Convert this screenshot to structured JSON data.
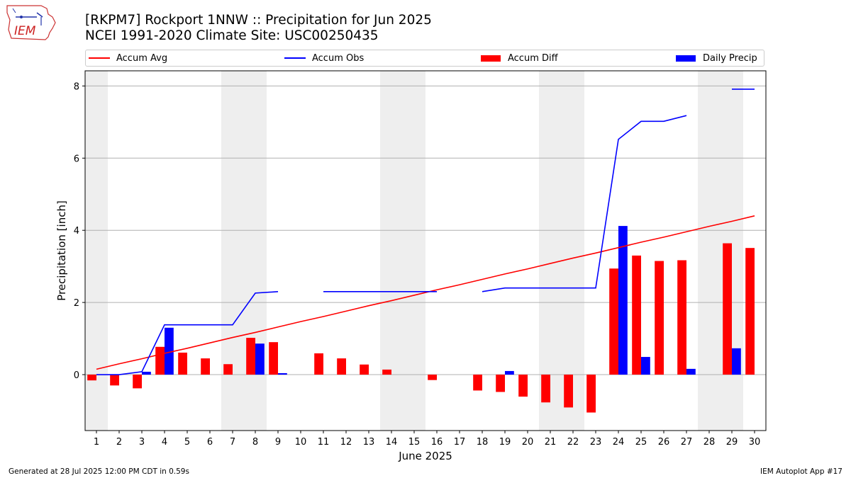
{
  "header": {
    "title_line1": "[RKPM7] Rockport 1NNW :: Precipitation for Jun 2025",
    "title_line2": "NCEI 1991-2020 Climate Site: USC00250435"
  },
  "logo": {
    "text": "IEM"
  },
  "legend": [
    {
      "label": "Accum Avg",
      "color": "#ff0000",
      "kind": "line"
    },
    {
      "label": "Accum Obs",
      "color": "#0000ff",
      "kind": "line"
    },
    {
      "label": "Accum Diff",
      "color": "#ff0000",
      "kind": "bar"
    },
    {
      "label": "Daily Precip",
      "color": "#0000ff",
      "kind": "bar"
    }
  ],
  "footer": {
    "left": "Generated at 28 Jul 2025 12:00 PM CDT in 0.59s",
    "right": "IEM Autoplot App #17"
  },
  "chart_data": {
    "type": "bar",
    "title": "[RKPM7] Rockport 1NNW :: Precipitation for Jun 2025",
    "subtitle": "NCEI 1991-2020 Climate Site: USC00250435",
    "xlabel": "June 2025",
    "ylabel": "Precipitation [inch]",
    "x": [
      1,
      2,
      3,
      4,
      5,
      6,
      7,
      8,
      9,
      10,
      11,
      12,
      13,
      14,
      15,
      16,
      17,
      18,
      19,
      20,
      21,
      22,
      23,
      24,
      25,
      26,
      27,
      28,
      29,
      30
    ],
    "xlim": [
      0.5,
      30.5
    ],
    "ylim": [
      -1.55,
      8.42
    ],
    "yticks": [
      0,
      2,
      4,
      6,
      8
    ],
    "grid": "y",
    "weekend_shading": [
      [
        0.5,
        1.5
      ],
      [
        6.5,
        8.5
      ],
      [
        13.5,
        15.5
      ],
      [
        20.5,
        22.5
      ],
      [
        27.5,
        29.5
      ]
    ],
    "legend_placement": "top, above plot",
    "series": [
      {
        "name": "Accum Avg",
        "type": "line",
        "color": "#ff0000",
        "values": [
          0.15,
          0.3,
          0.44,
          0.59,
          0.73,
          0.88,
          1.03,
          1.17,
          1.32,
          1.47,
          1.61,
          1.76,
          1.91,
          2.05,
          2.2,
          2.35,
          2.49,
          2.64,
          2.79,
          2.93,
          3.08,
          3.23,
          3.37,
          3.52,
          3.67,
          3.81,
          3.96,
          4.11,
          4.25,
          4.4
        ]
      },
      {
        "name": "Accum Obs",
        "type": "line",
        "color": "#0000ff",
        "values": [
          0.0,
          0.0,
          0.08,
          1.38,
          1.38,
          1.38,
          1.38,
          2.26,
          2.3,
          null,
          2.3,
          2.3,
          2.3,
          2.3,
          2.3,
          2.3,
          null,
          2.3,
          2.4,
          2.4,
          2.4,
          2.4,
          2.4,
          6.52,
          7.02,
          7.02,
          7.18,
          null,
          7.91,
          7.91
        ]
      },
      {
        "name": "Accum Diff",
        "type": "bar",
        "color": "#ff0000",
        "values": [
          -0.16,
          -0.3,
          -0.38,
          0.77,
          0.61,
          0.45,
          0.29,
          1.02,
          0.9,
          null,
          0.59,
          0.45,
          0.28,
          0.14,
          null,
          -0.15,
          null,
          -0.44,
          -0.48,
          -0.61,
          -0.77,
          -0.91,
          -1.05,
          2.94,
          3.3,
          3.15,
          3.17,
          null,
          3.64,
          3.51
        ]
      },
      {
        "name": "Daily Precip",
        "type": "bar",
        "color": "#0000ff",
        "values": [
          0,
          0,
          0.08,
          1.3,
          0,
          0,
          0,
          0.86,
          0.04,
          null,
          0,
          0,
          0,
          0,
          0,
          0,
          null,
          0,
          0.1,
          0,
          0,
          0,
          0,
          4.12,
          0.49,
          0,
          0.16,
          null,
          0.73,
          0
        ]
      }
    ]
  }
}
